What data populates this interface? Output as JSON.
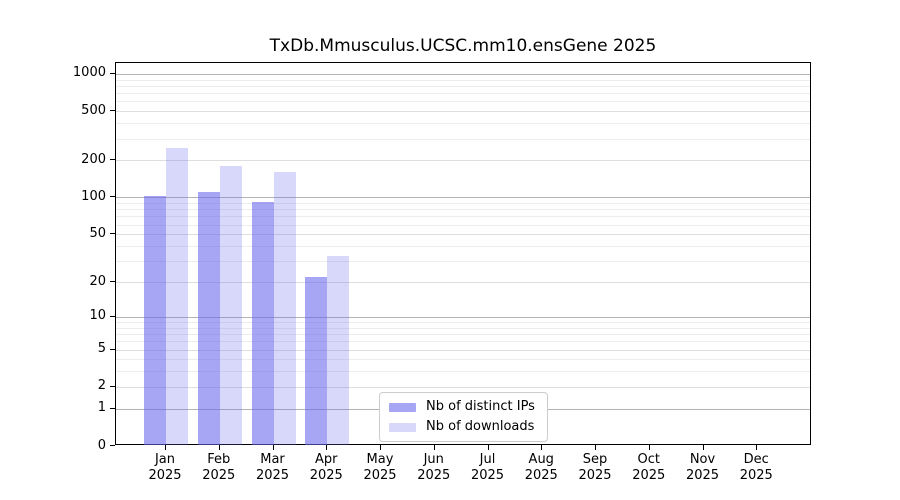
{
  "chart_data": {
    "type": "bar",
    "title": "TxDb.Mmusculus.UCSC.mm10.ensGene 2025",
    "categories": [
      "Jan",
      "Feb",
      "Mar",
      "Apr",
      "May",
      "Jun",
      "Jul",
      "Aug",
      "Sep",
      "Oct",
      "Nov",
      "Dec"
    ],
    "category_year": "2025",
    "series": [
      {
        "name": "Nb of distinct IPs",
        "color": "#a5a5f2",
        "values": [
          103,
          111,
          92,
          22,
          0,
          0,
          0,
          0,
          0,
          0,
          0,
          0
        ]
      },
      {
        "name": "Nb of downloads",
        "color": "#d9d9f9",
        "values": [
          251,
          181,
          162,
          33,
          0,
          0,
          0,
          0,
          0,
          0,
          0,
          0
        ]
      }
    ],
    "yscale": "log10(1+v)",
    "yticks": [
      0,
      1,
      2,
      5,
      10,
      20,
      50,
      100,
      200,
      500,
      1000
    ],
    "ylim": [
      0,
      1226
    ],
    "xlabel": "",
    "ylabel": "",
    "grid": true,
    "legend_position": "lower-center",
    "colors": {
      "bar_base_rgb": "101,101,237",
      "alpha_distinct_ips": 0.58,
      "alpha_downloads": 0.25,
      "grid_decade": "#b4b4b4",
      "grid_labeled": "#dedede",
      "grid_minor": "#ececec",
      "spine": "#000000",
      "text": "#000000",
      "legend_border": "#cccccc"
    }
  }
}
